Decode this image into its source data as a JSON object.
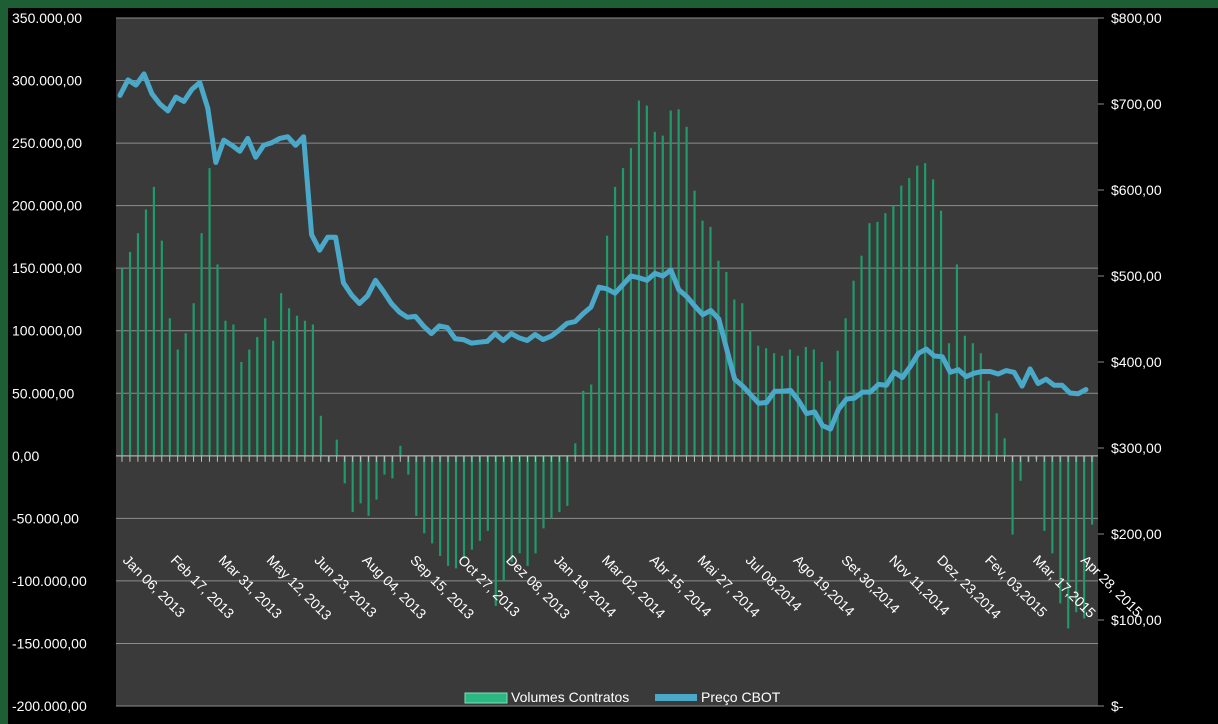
{
  "chart_data": {
    "type": "bar+line",
    "colors": {
      "bars": "#1f9a6a",
      "line": "#4aa8c8",
      "plot_bg": "#3a3a3a",
      "grid": "#8c8c8c",
      "outer_bg": "#000000",
      "frame": "#1d5e35"
    },
    "y_left": {
      "ylim": [
        -200000,
        350000
      ],
      "ticks": [
        -200000,
        -150000,
        -100000,
        -50000,
        0,
        50000,
        100000,
        150000,
        200000,
        250000,
        300000,
        350000
      ],
      "tick_labels": [
        "-200.000,00",
        "-150.000,00",
        "-100.000,00",
        "-50.000,00",
        "0,00",
        "50.000,00",
        "100.000,00",
        "150.000,00",
        "200.000,00",
        "250.000,00",
        "300.000,00",
        "350.000,00"
      ]
    },
    "y_right": {
      "ylim": [
        0,
        800
      ],
      "ticks": [
        0,
        100,
        200,
        300,
        400,
        500,
        600,
        700,
        800
      ],
      "tick_labels": [
        "$-",
        "$100,00",
        "$200,00",
        "$300,00",
        "$400,00",
        "$500,00",
        "$600,00",
        "$700,00",
        "$800,00"
      ]
    },
    "x_labels": [
      "Jan 06, 2013",
      "Feb 17, 2013",
      "Mar 31, 2013",
      "May 12, 2013",
      "Jun 23, 2013",
      "Aug 04, 2013",
      "Sep 15, 2013",
      "Oct 27, 2013",
      "Dez 08, 2013",
      "Jan 19, 2014",
      "Mar 02, 2014",
      "Abr 15, 2014",
      "Mai 27, 2014",
      "Jul 08,2014",
      "Ago 19,2014",
      "Set 30,2014",
      "Nov 11,2014",
      "Dez, 23,2014",
      "Fev, 03,2015",
      "Mar, 17,2015",
      "Apr 28, 2015"
    ],
    "legend": {
      "position": "bottom",
      "bar_label": "Volumes Contratos",
      "line_label": "Preço CBOT"
    },
    "series": [
      {
        "name": "Volumes Contratos",
        "type": "bar",
        "axis": "left",
        "values": [
          150000,
          163000,
          178000,
          197000,
          215000,
          172000,
          110000,
          85000,
          98000,
          122000,
          178000,
          230000,
          153000,
          108000,
          105000,
          75000,
          85000,
          95000,
          110000,
          92000,
          130000,
          118000,
          112000,
          108000,
          105000,
          32000,
          -5000,
          13000,
          -22000,
          -45000,
          -38000,
          -48000,
          -35000,
          -15000,
          -18000,
          8000,
          -15000,
          -48000,
          -62000,
          -70000,
          -80000,
          -88000,
          -90000,
          -82000,
          -75000,
          -68000,
          -60000,
          -120000,
          -100000,
          -85000,
          -78000,
          -88000,
          -78000,
          -58000,
          -50000,
          -45000,
          -40000,
          10000,
          52000,
          57000,
          102000,
          176000,
          215000,
          230000,
          246000,
          284000,
          280000,
          259000,
          256000,
          276000,
          277000,
          263000,
          212000,
          188000,
          183000,
          156000,
          147000,
          125000,
          122000,
          100000,
          88000,
          86000,
          82000,
          80000,
          85000,
          80000,
          87000,
          85000,
          75000,
          60000,
          84000,
          110000,
          140000,
          160000,
          186000,
          187000,
          194000,
          200000,
          216000,
          222000,
          232000,
          234000,
          221000,
          196000,
          90000,
          153000,
          96000,
          90000,
          82000,
          60000,
          34000,
          14000,
          -63000,
          -20000,
          -5000,
          -3000,
          -60000,
          -78000,
          -118000,
          -138000,
          -125000,
          -130000,
          -55000
        ]
      },
      {
        "name": "Preço CBOT",
        "type": "line",
        "axis": "right",
        "values": [
          710,
          728,
          722,
          735,
          712,
          700,
          692,
          708,
          703,
          717,
          725,
          695,
          632,
          658,
          652,
          645,
          660,
          638,
          652,
          655,
          660,
          662,
          652,
          662,
          548,
          530,
          545,
          545,
          492,
          478,
          468,
          477,
          495,
          482,
          468,
          458,
          452,
          453,
          442,
          433,
          442,
          440,
          427,
          426,
          422,
          423,
          424,
          433,
          425,
          433,
          428,
          425,
          432,
          426,
          430,
          437,
          445,
          447,
          456,
          464,
          487,
          485,
          480,
          490,
          500,
          498,
          495,
          503,
          500,
          507,
          484,
          476,
          465,
          455,
          460,
          450,
          415,
          380,
          372,
          362,
          352,
          353,
          366,
          366,
          367,
          355,
          340,
          342,
          326,
          322,
          345,
          357,
          358,
          365,
          365,
          374,
          373,
          388,
          382,
          395,
          410,
          415,
          407,
          406,
          388,
          391,
          383,
          387,
          389,
          389,
          386,
          390,
          388,
          372,
          392,
          375,
          380,
          373,
          373,
          364,
          363,
          368
        ]
      }
    ]
  }
}
